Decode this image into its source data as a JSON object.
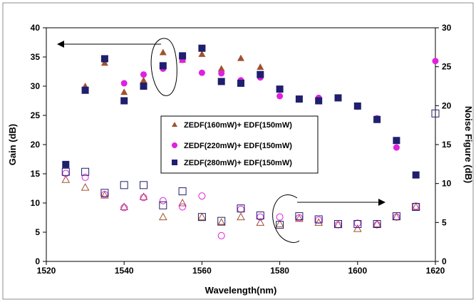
{
  "chart_data": {
    "type": "scatter",
    "title": "",
    "xlabel": "Wavelength(nm)",
    "ylabel": "Gain (dB)",
    "y2label": "Noise Figure (dB)",
    "xlim": [
      1520,
      1620
    ],
    "ylim": [
      0,
      40
    ],
    "y2lim": [
      0,
      30
    ],
    "xticks": [
      "1520",
      "1540",
      "1560",
      "1580",
      "1600",
      "1620"
    ],
    "yticks": [
      "0",
      "5",
      "10",
      "15",
      "20",
      "25",
      "30",
      "35",
      "40"
    ],
    "y2ticks": [
      "0",
      "5",
      "10",
      "15",
      "20",
      "25",
      "30"
    ],
    "grid": false,
    "legend_position": "center",
    "legend": [
      "ZEDF(160mW)+ EDF(150mW)",
      "ZEDF(220mW)+ EDF(150mW)",
      "ZEDF(280mW)+ EDF(150mW)"
    ],
    "colors": {
      "s160": "#A0522D",
      "s220": "#E020E0",
      "s280": "#1F1F6E"
    },
    "gain_series": [
      {
        "name": "ZEDF(160mW)+ EDF(150mW)",
        "marker": "triangle",
        "color": "#A0522D",
        "x": [
          1530,
          1535,
          1540,
          1545,
          1550,
          1555,
          1560,
          1565,
          1570,
          1575
        ],
        "y": [
          30.0,
          34.0,
          29.0,
          31.0,
          35.8,
          34.5,
          35.5,
          33.0,
          34.8,
          33.3
        ]
      },
      {
        "name": "ZEDF(220mW)+ EDF(150mW)",
        "marker": "circle",
        "color": "#E020E0",
        "x": [
          1540,
          1545,
          1550,
          1555,
          1560,
          1565,
          1570,
          1575,
          1580,
          1585,
          1590,
          1595,
          1600,
          1605,
          1610,
          1615,
          1620
        ],
        "y": [
          30.5,
          32.0,
          33.0,
          34.5,
          32.3,
          32.2,
          31.0,
          31.5,
          28.3,
          27.8,
          28.0,
          28.0,
          26.5,
          24.5,
          19.5,
          14.8,
          34.3
        ]
      },
      {
        "name": "ZEDF(280mW)+ EDF(150mW)",
        "marker": "square",
        "color": "#1F1F6E",
        "x": [
          1525,
          1530,
          1535,
          1540,
          1545,
          1550,
          1555,
          1560,
          1565,
          1570,
          1575,
          1580,
          1585,
          1590,
          1595,
          1600,
          1605,
          1610,
          1615
        ],
        "y": [
          16.6,
          29.3,
          34.7,
          27.5,
          30.0,
          33.5,
          35.2,
          36.5,
          30.8,
          30.5,
          32.0,
          29.5,
          27.8,
          27.5,
          28.0,
          26.6,
          24.3,
          20.7,
          14.8
        ]
      }
    ],
    "nf_series": [
      {
        "name": "ZEDF(160mW)+ EDF(150mW)",
        "marker": "triangle-open",
        "color": "#A0522D",
        "x": [
          1525,
          1530,
          1535,
          1540,
          1545,
          1550,
          1555,
          1560,
          1565,
          1570,
          1575,
          1580,
          1585,
          1590,
          1595,
          1600,
          1605,
          1610,
          1615
        ],
        "y": [
          10.5,
          9.5,
          8.5,
          7.0,
          8.3,
          5.7,
          7.5,
          5.7,
          5.0,
          5.7,
          5.0,
          4.8,
          5.5,
          5.0,
          4.7,
          4.2,
          4.8,
          5.7,
          7.0
        ]
      },
      {
        "name": "ZEDF(220mW)+ EDF(150mW)",
        "marker": "circle-open",
        "color": "#E020E0",
        "x": [
          1525,
          1530,
          1535,
          1540,
          1545,
          1550,
          1555,
          1560,
          1565,
          1570,
          1575,
          1580,
          1585,
          1590,
          1595,
          1600,
          1605,
          1610,
          1615
        ],
        "y": [
          11.3,
          10.8,
          8.6,
          6.9,
          8.2,
          7.8,
          7.0,
          8.4,
          3.3,
          6.7,
          5.7,
          5.7,
          5.6,
          5.3,
          4.7,
          4.9,
          4.7,
          5.7,
          7.1
        ]
      },
      {
        "name": "ZEDF(280mW)+ EDF(150mW)",
        "marker": "square-open",
        "color": "#1F1F6E",
        "x": [
          1525,
          1530,
          1535,
          1540,
          1545,
          1550,
          1555,
          1560,
          1565,
          1570,
          1575,
          1580,
          1585,
          1590,
          1595,
          1600,
          1605,
          1610,
          1615,
          1620
        ],
        "y": [
          11.5,
          11.5,
          8.8,
          9.8,
          9.8,
          7.2,
          9.0,
          5.7,
          5.2,
          6.8,
          5.9,
          4.7,
          5.8,
          5.4,
          4.8,
          4.8,
          4.8,
          5.8,
          7.0,
          19.0
        ]
      }
    ]
  }
}
